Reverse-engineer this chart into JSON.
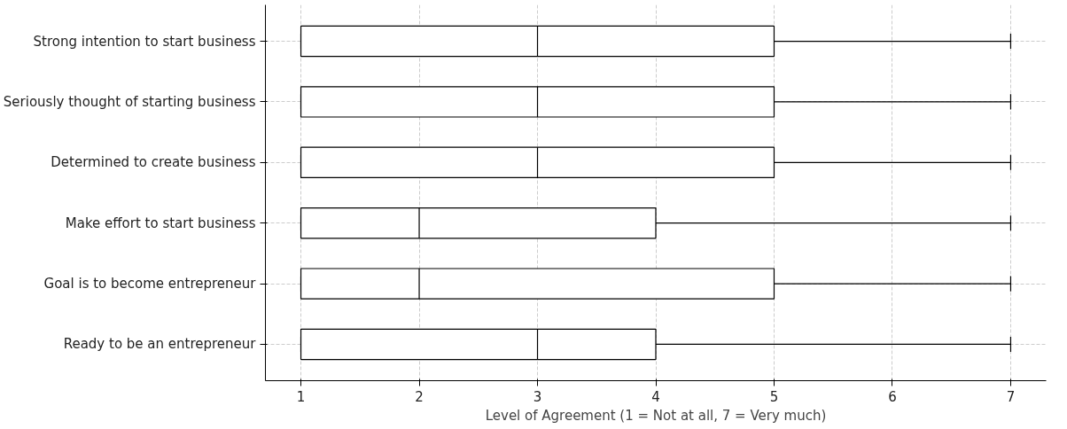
{
  "chart_data": {
    "type": "box",
    "orientation": "horizontal",
    "xlabel": "Level of Agreement (1 = Not at all, 7 = Very much)",
    "categories": [
      "Strong intention to start business",
      "Seriously thought of starting business",
      "Determined to create business",
      "Make effort to start business",
      "Goal is to become entrepreneur",
      "Ready to be an entrepreneur"
    ],
    "boxes": [
      {
        "low": 1,
        "q1": 1,
        "median": 3,
        "q3": 5,
        "high": 7
      },
      {
        "low": 1,
        "q1": 1,
        "median": 3,
        "q3": 5,
        "high": 7
      },
      {
        "low": 1,
        "q1": 1,
        "median": 3,
        "q3": 5,
        "high": 7
      },
      {
        "low": 1,
        "q1": 1,
        "median": 2,
        "q3": 4,
        "high": 7
      },
      {
        "low": 1,
        "q1": 1,
        "median": 2,
        "q3": 5,
        "high": 7
      },
      {
        "low": 1,
        "q1": 1,
        "median": 3,
        "q3": 4,
        "high": 7
      }
    ],
    "xlim": [
      0.7,
      7.3
    ],
    "xticks": [
      1,
      2,
      3,
      4,
      5,
      6,
      7
    ],
    "grid": true
  }
}
